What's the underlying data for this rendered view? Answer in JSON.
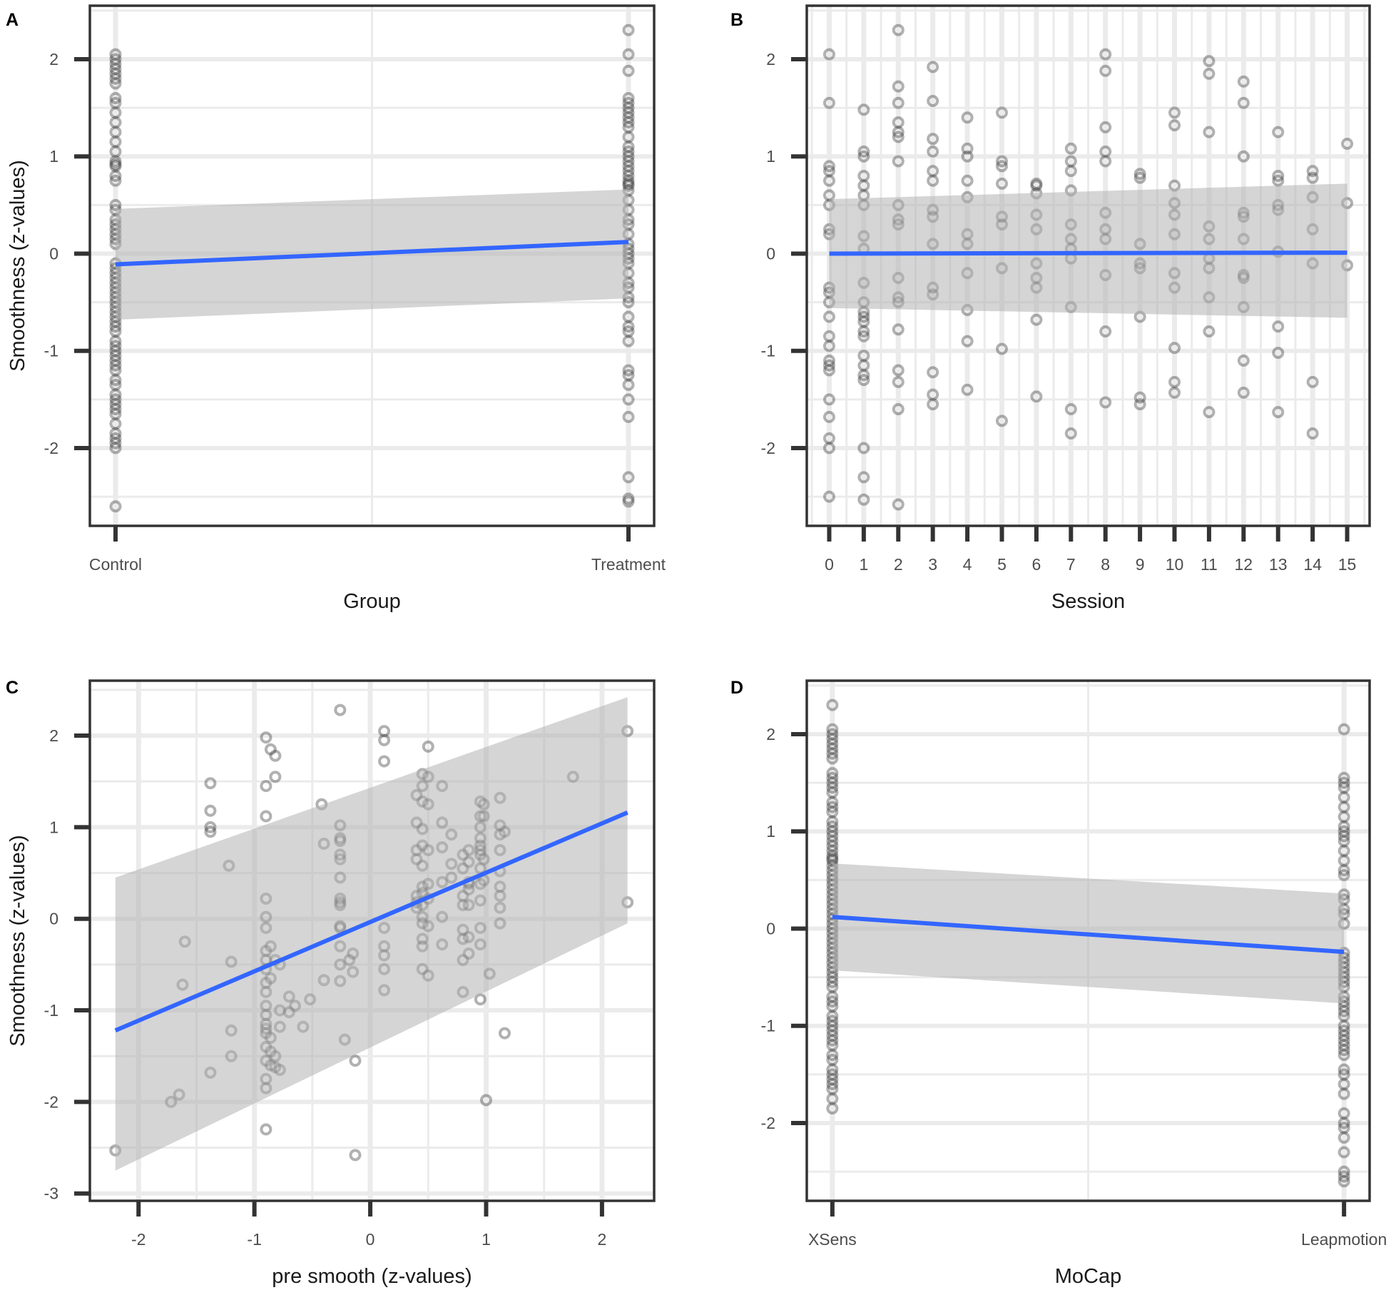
{
  "colors": {
    "fit_line": "#3366ff",
    "ribbon": "#b3b3b3",
    "points": "#333333",
    "grid": "#ebebeb",
    "frame": "#333333"
  },
  "chart_data": [
    {
      "panel": "A",
      "type": "scatter",
      "xlabel": "Group",
      "ylabel": "Smoothness (z-values)",
      "x_type": "categorical",
      "categories": [
        "Control",
        "Treatment"
      ],
      "xlim": [
        -0.05,
        1.05
      ],
      "ylim": [
        -2.8,
        2.55
      ],
      "yticks": [
        -2,
        -1,
        0,
        1,
        2
      ],
      "ytick_labels": [
        "-2",
        "-1",
        "0",
        "1",
        "2"
      ],
      "points": [
        {
          "x": 0,
          "y": [
            2.05,
            2.0,
            1.95,
            1.9,
            1.85,
            1.8,
            1.75,
            1.6,
            1.55,
            1.45,
            1.35,
            1.25,
            1.15,
            1.05,
            0.95,
            0.92,
            0.9,
            0.8,
            0.75,
            0.5,
            0.45,
            0.35,
            0.3,
            0.25,
            0.2,
            0.15,
            0.1,
            -0.1,
            -0.15,
            -0.2,
            -0.25,
            -0.3,
            -0.35,
            -0.4,
            -0.45,
            -0.5,
            -0.55,
            -0.6,
            -0.65,
            -0.7,
            -0.75,
            -0.8,
            -0.9,
            -0.95,
            -1.0,
            -1.05,
            -1.1,
            -1.15,
            -1.2,
            -1.3,
            -1.35,
            -1.45,
            -1.5,
            -1.55,
            -1.6,
            -1.65,
            -1.75,
            -1.85,
            -1.9,
            -1.95,
            -2.0,
            -2.6
          ]
        },
        {
          "x": 1,
          "y": [
            2.3,
            2.05,
            1.88,
            1.6,
            1.55,
            1.5,
            1.45,
            1.4,
            1.35,
            1.3,
            1.2,
            1.1,
            1.05,
            1.0,
            0.95,
            0.9,
            0.85,
            0.8,
            0.75,
            0.72,
            0.7,
            0.65,
            0.55,
            0.45,
            0.35,
            0.3,
            0.2,
            0.1,
            0.05,
            0.0,
            -0.05,
            -0.1,
            -0.2,
            -0.3,
            -0.35,
            -0.45,
            -0.5,
            -0.65,
            -0.75,
            -0.8,
            -0.9,
            -1.2,
            -1.25,
            -1.35,
            -1.5,
            -1.68,
            -2.3,
            -2.52,
            -2.55
          ]
        }
      ],
      "fit": {
        "x": [
          0,
          1
        ],
        "y": [
          -0.11,
          0.12
        ],
        "ci_lower": [
          -0.68,
          -0.46
        ],
        "ci_upper": [
          0.46,
          0.66
        ]
      }
    },
    {
      "panel": "B",
      "type": "scatter",
      "xlabel": "Session",
      "ylabel": "",
      "x_type": "numeric",
      "xlim": [
        -0.65,
        15.65
      ],
      "ylim": [
        -2.8,
        2.55
      ],
      "xticks": [
        0,
        1,
        2,
        3,
        4,
        5,
        6,
        7,
        8,
        9,
        10,
        11,
        12,
        13,
        14,
        15
      ],
      "xtick_labels": [
        "0",
        "1",
        "2",
        "3",
        "4",
        "5",
        "6",
        "7",
        "8",
        "9",
        "10",
        "11",
        "12",
        "13",
        "14",
        "15"
      ],
      "yticks": [
        -2,
        -1,
        0,
        1,
        2
      ],
      "ytick_labels": [
        "-2",
        "-1",
        "0",
        "1",
        "2"
      ],
      "points": [
        {
          "x": 0,
          "y": [
            2.05,
            1.55,
            0.9,
            0.85,
            0.75,
            0.6,
            0.5,
            0.25,
            0.2,
            -0.35,
            -0.4,
            -0.5,
            -0.65,
            -0.85,
            -0.95,
            -1.1,
            -1.15,
            -1.2,
            -1.5,
            -1.68,
            -1.9,
            -2.0,
            -2.5
          ]
        },
        {
          "x": 1,
          "y": [
            1.48,
            1.05,
            1.0,
            0.8,
            0.7,
            0.6,
            0.5,
            0.18,
            0.05,
            -0.3,
            -0.5,
            -0.6,
            -0.65,
            -0.7,
            -0.8,
            -0.85,
            -1.05,
            -1.15,
            -1.25,
            -1.3,
            -2.0,
            -2.3,
            -2.53
          ]
        },
        {
          "x": 2,
          "y": [
            2.3,
            1.72,
            1.55,
            1.35,
            1.25,
            1.2,
            0.95,
            0.5,
            0.35,
            0.3,
            -0.25,
            -0.45,
            -0.5,
            -0.78,
            -1.2,
            -1.32,
            -1.6,
            -2.58
          ]
        },
        {
          "x": 3,
          "y": [
            1.92,
            1.57,
            1.18,
            1.05,
            0.85,
            0.75,
            0.45,
            0.38,
            0.1,
            -0.35,
            -0.42,
            -1.22,
            -1.45,
            -1.55
          ]
        },
        {
          "x": 4,
          "y": [
            1.4,
            1.08,
            1.0,
            0.75,
            0.58,
            0.2,
            0.1,
            -0.2,
            -0.58,
            -0.9,
            -1.4
          ]
        },
        {
          "x": 5,
          "y": [
            1.45,
            0.95,
            0.9,
            0.72,
            0.38,
            0.3,
            -0.15,
            -0.98,
            -1.72
          ]
        },
        {
          "x": 6,
          "y": [
            0.72,
            0.7,
            0.62,
            0.4,
            0.25,
            -0.1,
            -0.25,
            -0.35,
            -0.68,
            -1.47
          ]
        },
        {
          "x": 7,
          "y": [
            1.08,
            0.95,
            0.85,
            0.65,
            0.3,
            0.15,
            0.05,
            -0.05,
            -0.55,
            -1.6,
            -1.85
          ]
        },
        {
          "x": 8,
          "y": [
            2.05,
            1.88,
            1.3,
            1.05,
            0.95,
            0.42,
            0.25,
            0.15,
            -0.22,
            -0.8,
            -1.53
          ]
        },
        {
          "x": 9,
          "y": [
            0.82,
            0.78,
            0.1,
            -0.1,
            -0.15,
            -0.65,
            -1.48,
            -1.55
          ]
        },
        {
          "x": 10,
          "y": [
            1.45,
            1.32,
            0.7,
            0.52,
            0.4,
            0.2,
            -0.2,
            -0.35,
            -0.97,
            -1.32,
            -1.43
          ]
        },
        {
          "x": 11,
          "y": [
            1.98,
            1.85,
            1.25,
            0.28,
            0.15,
            -0.05,
            -0.15,
            -0.45,
            -0.8,
            -1.63
          ]
        },
        {
          "x": 12,
          "y": [
            1.77,
            1.55,
            1.0,
            0.42,
            0.38,
            0.15,
            -0.22,
            -0.25,
            -0.55,
            -1.1,
            -1.43
          ]
        },
        {
          "x": 13,
          "y": [
            1.25,
            0.8,
            0.75,
            0.5,
            0.45,
            0.02,
            -0.75,
            -1.02,
            -1.63
          ]
        },
        {
          "x": 14,
          "y": [
            0.85,
            0.78,
            0.58,
            0.25,
            -0.1,
            -1.32,
            -1.85
          ]
        },
        {
          "x": 15,
          "y": [
            1.13,
            0.52,
            -0.12
          ]
        }
      ],
      "fit": {
        "x": [
          0,
          15
        ],
        "y": [
          0.0,
          0.01
        ],
        "ci_lower": [
          -0.56,
          -0.66
        ],
        "ci_upper": [
          0.56,
          0.72
        ]
      }
    },
    {
      "panel": "C",
      "type": "scatter",
      "xlabel": "pre smooth (z-values)",
      "ylabel": "Smoothness (z-values)",
      "x_type": "numeric",
      "xlim": [
        -2.42,
        2.45
      ],
      "ylim": [
        -3.08,
        2.6
      ],
      "xticks": [
        -2,
        -1,
        0,
        1,
        2
      ],
      "xtick_labels": [
        "-2",
        "-1",
        "0",
        "1",
        "2"
      ],
      "yticks": [
        -3,
        -2,
        -1,
        0,
        1,
        2
      ],
      "ytick_labels": [
        "-3",
        "-2",
        "-1",
        "0",
        "1",
        "2"
      ],
      "points": [
        {
          "x": -2.2,
          "y": [
            -2.53
          ]
        },
        {
          "x": -1.72,
          "y": [
            -2.0
          ]
        },
        {
          "x": -1.65,
          "y": [
            -1.92
          ]
        },
        {
          "x": -1.62,
          "y": [
            -0.72
          ]
        },
        {
          "x": -1.6,
          "y": [
            -0.25
          ]
        },
        {
          "x": -1.38,
          "y": [
            1.48
          ]
        },
        {
          "x": -1.38,
          "y": [
            1.18
          ]
        },
        {
          "x": -1.38,
          "y": [
            1.0
          ]
        },
        {
          "x": -1.38,
          "y": [
            0.95
          ]
        },
        {
          "x": -1.38,
          "y": [
            -1.68
          ]
        },
        {
          "x": -1.22,
          "y": [
            0.58
          ]
        },
        {
          "x": -1.2,
          "y": [
            -0.47
          ]
        },
        {
          "x": -1.2,
          "y": [
            -1.22
          ]
        },
        {
          "x": -1.2,
          "y": [
            -1.5
          ]
        },
        {
          "x": -0.9,
          "y": [
            1.98,
            1.45,
            1.12,
            0.22,
            0.02,
            -0.1,
            -0.35,
            -0.45,
            -0.55,
            -0.7,
            -0.8,
            -0.95,
            -1.05,
            -1.15,
            -1.2,
            -1.25,
            -1.4,
            -1.55,
            -1.75,
            -1.85,
            -2.3
          ]
        },
        {
          "x": -0.86,
          "y": [
            1.85,
            -0.3,
            -0.65,
            -1.3,
            -1.45,
            -1.6
          ]
        },
        {
          "x": -0.82,
          "y": [
            1.78,
            1.55,
            -0.45,
            -1.5,
            -1.62
          ]
        },
        {
          "x": -0.78,
          "y": [
            -0.5,
            -1.0,
            -1.18,
            -1.65
          ]
        },
        {
          "x": -0.7,
          "y": [
            -0.85,
            -1.02
          ]
        },
        {
          "x": -0.65,
          "y": [
            -0.95
          ]
        },
        {
          "x": -0.58,
          "y": [
            -1.18
          ]
        },
        {
          "x": -0.52,
          "y": [
            -0.88
          ]
        },
        {
          "x": -0.42,
          "y": [
            1.25
          ]
        },
        {
          "x": -0.4,
          "y": [
            0.82
          ]
        },
        {
          "x": -0.4,
          "y": [
            -0.67
          ]
        },
        {
          "x": -0.26,
          "y": [
            2.28
          ]
        },
        {
          "x": -0.26,
          "y": [
            1.02,
            0.88,
            0.85,
            0.7,
            0.65,
            0.45,
            0.22,
            0.18,
            0.15,
            -0.08,
            -0.1,
            -0.3,
            -0.5,
            -0.68
          ]
        },
        {
          "x": -0.22,
          "y": [
            -1.32
          ]
        },
        {
          "x": -0.18,
          "y": [
            -0.45
          ]
        },
        {
          "x": -0.15,
          "y": [
            -0.58,
            -0.38
          ]
        },
        {
          "x": -0.13,
          "y": [
            -1.55
          ]
        },
        {
          "x": -0.13,
          "y": [
            -2.58
          ]
        },
        {
          "x": 0.12,
          "y": [
            2.05,
            1.95,
            1.72,
            -0.1,
            -0.3,
            -0.4,
            -0.55,
            -0.78
          ]
        },
        {
          "x": 0.4,
          "y": [
            1.35,
            1.05,
            0.75,
            0.65,
            0.25,
            0.18,
            0.12
          ]
        },
        {
          "x": 0.45,
          "y": [
            1.58,
            1.45,
            1.28,
            0.98,
            0.8,
            0.58,
            0.35,
            0.28,
            0.15,
            0.02,
            -0.05,
            -0.22,
            -0.3,
            -0.55
          ]
        },
        {
          "x": 0.5,
          "y": [
            1.88,
            1.55,
            1.25,
            0.75,
            0.38,
            0.22,
            -0.08,
            -0.62
          ]
        },
        {
          "x": 0.62,
          "y": [
            1.45,
            1.05,
            0.78,
            0.4,
            0.02,
            -0.28
          ]
        },
        {
          "x": 0.7,
          "y": [
            0.92,
            0.6,
            0.45
          ]
        },
        {
          "x": 0.8,
          "y": [
            0.7,
            0.55,
            0.25,
            0.15,
            -0.12,
            -0.22,
            -0.45,
            -0.8
          ]
        },
        {
          "x": 0.85,
          "y": [
            0.75,
            0.62,
            0.4,
            0.38,
            0.32,
            0.15,
            -0.2,
            -0.38
          ]
        },
        {
          "x": 0.95,
          "y": [
            1.28,
            1.12,
            1.0,
            0.88,
            0.8,
            0.75,
            0.7,
            0.55,
            0.38,
            0.2,
            -0.1,
            -0.28,
            -0.88
          ]
        },
        {
          "x": 0.98,
          "y": [
            1.25,
            1.12,
            0.65,
            0.42
          ]
        },
        {
          "x": 1.0,
          "y": [
            -1.98
          ]
        },
        {
          "x": 1.03,
          "y": [
            -0.6
          ]
        },
        {
          "x": 1.12,
          "y": [
            1.32,
            1.02,
            0.92,
            0.75,
            0.52,
            0.35,
            0.25,
            0.12,
            -0.05
          ]
        },
        {
          "x": 1.16,
          "y": [
            0.95,
            -1.25
          ]
        },
        {
          "x": 1.75,
          "y": [
            1.55
          ]
        },
        {
          "x": 2.22,
          "y": [
            2.05
          ]
        },
        {
          "x": 2.22,
          "y": [
            0.18
          ]
        }
      ],
      "fit": {
        "x": [
          -2.2,
          2.22
        ],
        "y": [
          -1.22,
          1.16
        ],
        "ci_lower": [
          -2.75,
          -0.05
        ],
        "ci_upper": [
          0.45,
          2.42
        ]
      }
    },
    {
      "panel": "D",
      "type": "scatter",
      "xlabel": "MoCap",
      "ylabel": "",
      "x_type": "categorical",
      "categories": [
        "XSens",
        "Leapmotion"
      ],
      "xlim": [
        -0.05,
        1.05
      ],
      "ylim": [
        -2.8,
        2.55
      ],
      "yticks": [
        -2,
        -1,
        0,
        1,
        2
      ],
      "ytick_labels": [
        "-2",
        "-1",
        "0",
        "1",
        "2"
      ],
      "points": [
        {
          "x": 0,
          "y": [
            2.3,
            2.05,
            2.0,
            1.95,
            1.9,
            1.85,
            1.8,
            1.75,
            1.6,
            1.55,
            1.5,
            1.45,
            1.4,
            1.3,
            1.25,
            1.2,
            1.1,
            1.05,
            1.0,
            0.95,
            0.9,
            0.85,
            0.8,
            0.75,
            0.72,
            0.7,
            0.65,
            0.6,
            0.55,
            0.5,
            0.45,
            0.4,
            0.35,
            0.3,
            0.25,
            0.2,
            0.15,
            0.1,
            0.05,
            0.0,
            -0.05,
            -0.1,
            -0.15,
            -0.2,
            -0.25,
            -0.3,
            -0.35,
            -0.4,
            -0.45,
            -0.5,
            -0.55,
            -0.6,
            -0.7,
            -0.75,
            -0.8,
            -0.9,
            -0.95,
            -1.0,
            -1.05,
            -1.1,
            -1.15,
            -1.2,
            -1.3,
            -1.35,
            -1.45,
            -1.5,
            -1.55,
            -1.6,
            -1.65,
            -1.75,
            -1.85
          ]
        },
        {
          "x": 1,
          "y": [
            2.05,
            1.55,
            1.5,
            1.45,
            1.35,
            1.25,
            1.15,
            1.05,
            1.0,
            0.95,
            0.9,
            0.8,
            0.7,
            0.6,
            0.55,
            0.35,
            0.3,
            0.2,
            0.15,
            0.05,
            -0.25,
            -0.3,
            -0.35,
            -0.4,
            -0.45,
            -0.5,
            -0.55,
            -0.6,
            -0.7,
            -0.75,
            -0.8,
            -0.85,
            -0.9,
            -1.0,
            -1.05,
            -1.1,
            -1.15,
            -1.2,
            -1.25,
            -1.3,
            -1.45,
            -1.5,
            -1.6,
            -1.7,
            -1.9,
            -2.0,
            -2.05,
            -2.15,
            -2.3,
            -2.5,
            -2.55,
            -2.6
          ]
        }
      ],
      "fit": {
        "x": [
          0,
          1
        ],
        "y": [
          0.12,
          -0.24
        ],
        "ci_lower": [
          -0.43,
          -0.77
        ],
        "ci_upper": [
          0.67,
          0.36
        ]
      }
    }
  ]
}
